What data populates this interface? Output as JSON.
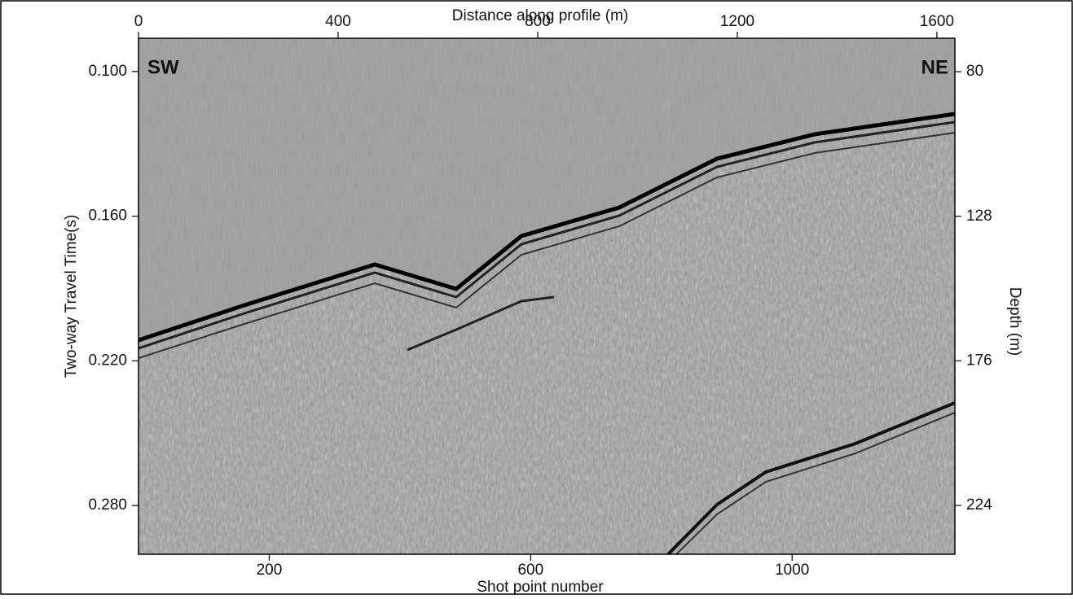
{
  "figure": {
    "top_axis": {
      "label": "Distance along profile (m)",
      "lim": [
        0,
        1636
      ],
      "ticks": [
        0,
        400,
        800,
        1200,
        1600
      ]
    },
    "bottom_axis": {
      "label": "Shot point number",
      "lim": [
        0,
        1249
      ],
      "ticks": [
        200,
        600,
        1000
      ]
    },
    "left_axis": {
      "label": "Two-way Travel Time(s)",
      "lim": [
        0.0862,
        0.3002
      ],
      "ticks": [
        {
          "value": 0.1,
          "label": "0.100"
        },
        {
          "value": 0.16,
          "label": "0.160"
        },
        {
          "value": 0.22,
          "label": "0.220"
        },
        {
          "value": 0.28,
          "label": "0.280"
        }
      ]
    },
    "right_axis": {
      "label": "Depth (m)",
      "lim": [
        68.9,
        240.2
      ],
      "ticks": [
        80,
        128,
        176,
        224
      ]
    },
    "annotations": [
      "SW",
      "NE"
    ]
  }
}
